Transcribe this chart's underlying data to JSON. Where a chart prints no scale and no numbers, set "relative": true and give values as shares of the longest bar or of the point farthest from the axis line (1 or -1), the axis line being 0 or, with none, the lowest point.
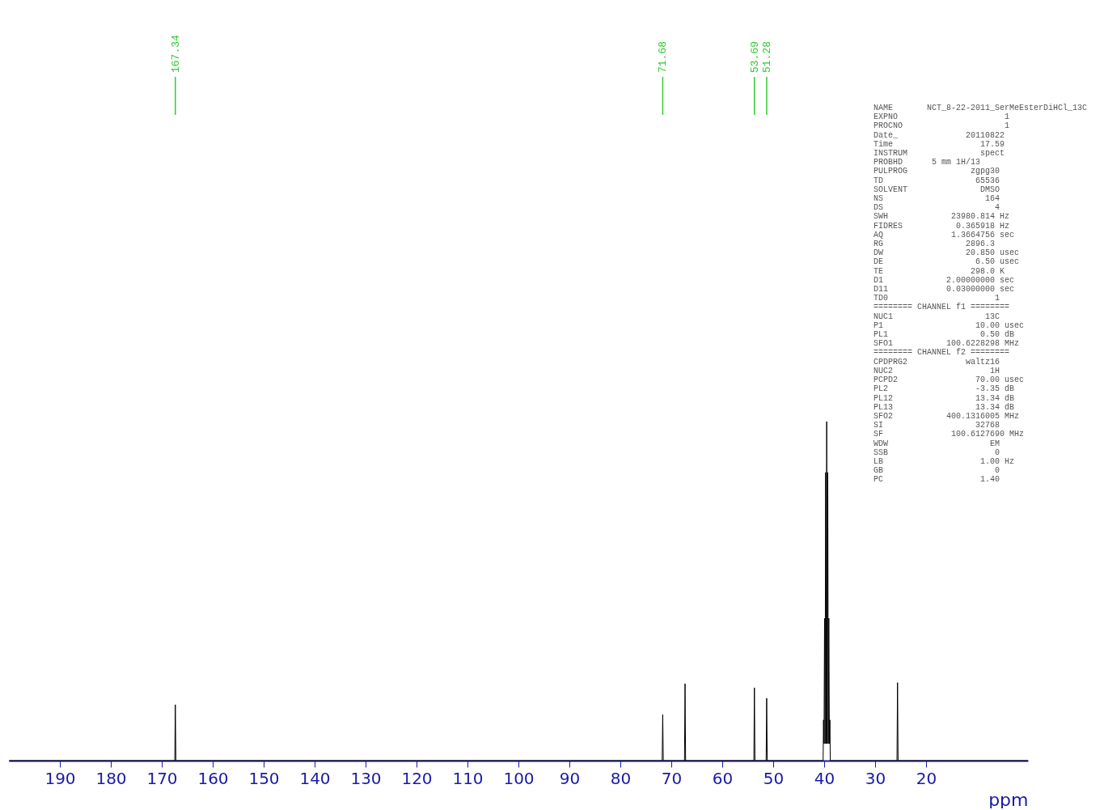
{
  "chart_data": {
    "type": "line",
    "relative": true,
    "xlabel": "ppm",
    "xlim": [
      200,
      0
    ],
    "xticks": [
      190,
      180,
      170,
      160,
      150,
      140,
      130,
      120,
      110,
      100,
      90,
      80,
      70,
      60,
      50,
      40,
      30,
      20
    ],
    "grid": false,
    "marker": "none",
    "line_style": "solid",
    "series": [
      {
        "color": "#000000",
        "x": [
          200,
          167.45,
          167.34,
          167.23,
          71.79,
          71.68,
          71.57,
          67.41,
          67.3,
          67.19,
          53.8,
          53.69,
          53.58,
          51.39,
          51.28,
          51.17,
          40.2,
          40.13,
          40.03,
          39.92,
          39.82,
          39.71,
          39.6,
          39.5,
          39.4,
          39.29,
          39.18,
          39.08,
          38.97,
          38.87,
          38.8,
          25.71,
          25.6,
          25.49,
          0
        ],
        "values": [
          0,
          0,
          0.165,
          0,
          0,
          0.136,
          0,
          0,
          0.227,
          0,
          0,
          0.215,
          0,
          0,
          0.184,
          0,
          0,
          0.12,
          0.05,
          0.42,
          0.05,
          0.85,
          0.05,
          1,
          0.05,
          0.85,
          0.05,
          0.42,
          0.05,
          0.12,
          0,
          0,
          0.23,
          0,
          0
        ]
      }
    ],
    "annotations": [
      {
        "text": "167.34",
        "x": 167.34
      },
      {
        "text": "71.68",
        "x": 71.68
      },
      {
        "text": "53.69",
        "x": 53.69
      },
      {
        "text": "51.28",
        "x": 51.28
      },
      "NAME       NCT_8-22-2011_SerMeEsterDiHCl_13C",
      "EXPNO                      1",
      "PROCNO                     1",
      "Date_              20110822",
      "Time                  17.59",
      "INSTRUM               spect",
      "PROBHD      5 mm 1H/13",
      "PULPROG             zgpg30",
      "TD                   65536",
      "SOLVENT               DMSO",
      "NS                     164",
      "DS                       4",
      "SWH             23980.814 Hz",
      "FIDRES           0.365918 Hz",
      "AQ              1.3664756 sec",
      "RG                 2896.3",
      "DW                 20.850 usec",
      "DE                   6.50 usec",
      "TE                  298.0 K",
      "D1             2.00000000 sec",
      "D11            0.03000000 sec",
      "TD0                      1",
      "======== CHANNEL f1 ========",
      "NUC1                   13C",
      "P1                   10.00 usec",
      "PL1                   0.50 dB",
      "SFO1           100.6228298 MHz",
      "======== CHANNEL f2 ========",
      "CPDPRG2            waltz16",
      "NUC2                    1H",
      "PCPD2                70.00 usec",
      "PL2                  -3.35 dB",
      "PL12                 13.34 dB",
      "PL13                 13.34 dB",
      "SFO2           400.1316005 MHz",
      "SI                   32768",
      "SF              100.6127690 MHz",
      "WDW                     EM",
      "SSB                      0",
      "LB                    1.00 Hz",
      "GB                       0",
      "PC                    1.40"
    ]
  }
}
